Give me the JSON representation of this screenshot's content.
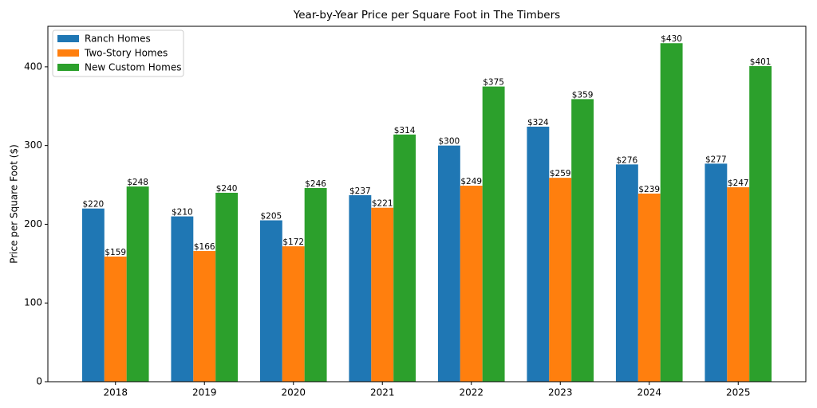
{
  "chart_data": {
    "type": "bar",
    "title": "Year-by-Year Price per Square Foot in The Timbers",
    "y_label": "Price per Square Foot ($)",
    "categories": [
      "2018",
      "2019",
      "2020",
      "2021",
      "2022",
      "2023",
      "2024",
      "2025"
    ],
    "series": [
      {
        "name": "Ranch Homes",
        "color": "#1f77b4",
        "values": [
          220,
          210,
          205,
          237,
          300,
          324,
          276,
          277
        ],
        "value_labels": [
          "$220",
          "$210",
          "$205",
          "$237",
          "$300",
          "$324",
          "$276",
          "$277"
        ]
      },
      {
        "name": "Two-Story Homes",
        "color": "#ff7f0e",
        "values": [
          159,
          166,
          172,
          221,
          249,
          259,
          239,
          247
        ],
        "value_labels": [
          "$159",
          "$166",
          "$172",
          "$221",
          "$249",
          "$259",
          "$239",
          "$247"
        ]
      },
      {
        "name": "New Custom Homes",
        "color": "#2ca02c",
        "values": [
          248,
          240,
          246,
          314,
          375,
          359,
          430,
          401
        ],
        "value_labels": [
          "$248",
          "$240",
          "$246",
          "$314",
          "$375",
          "$359",
          "$430",
          "$401"
        ]
      }
    ],
    "ylim": [
      0,
      451.5
    ],
    "yticks": [
      0,
      100,
      200,
      300,
      400
    ],
    "grid": false,
    "legend": "upper-left"
  }
}
